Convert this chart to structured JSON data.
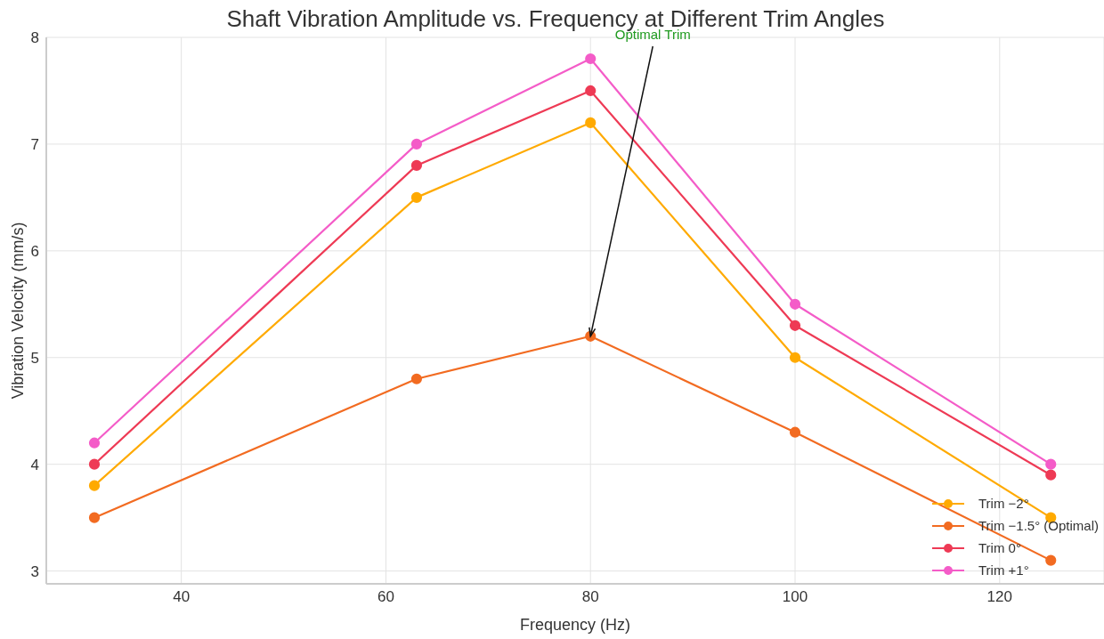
{
  "chart_data": {
    "type": "line",
    "title": "Shaft Vibration Amplitude vs. Frequency at Different Trim Angles",
    "xlabel": "Frequency (Hz)",
    "ylabel": "Vibration Velocity (mm/s)",
    "x": [
      31.5,
      63,
      80,
      100,
      125
    ],
    "series": [
      {
        "name": "Trim −2°",
        "color": "#ffaa00",
        "values": [
          3.8,
          6.5,
          7.2,
          5.0,
          3.5
        ]
      },
      {
        "name": "Trim −1.5° (Optimal)",
        "color": "#f26b21",
        "values": [
          3.5,
          4.8,
          5.2,
          4.3,
          3.1
        ]
      },
      {
        "name": "Trim 0°",
        "color": "#ee3a55",
        "values": [
          4.0,
          6.8,
          7.5,
          5.3,
          3.9
        ]
      },
      {
        "name": "Trim +1°",
        "color": "#f45cc8",
        "values": [
          4.2,
          7.0,
          7.8,
          5.5,
          4.0
        ]
      }
    ],
    "xlim": [
      26.8,
      130.2
    ],
    "xticks": [
      40,
      60,
      80,
      100,
      120
    ],
    "ylim": [
      2.88,
      8
    ],
    "yticks": [
      3,
      4,
      5,
      6,
      7,
      8
    ],
    "annotations": [
      {
        "text": "Optimal Trim",
        "x": 80,
        "y": 5.2
      }
    ],
    "grid": true,
    "legend": "bottom right",
    "marker": "circle",
    "line_style": "solid"
  }
}
